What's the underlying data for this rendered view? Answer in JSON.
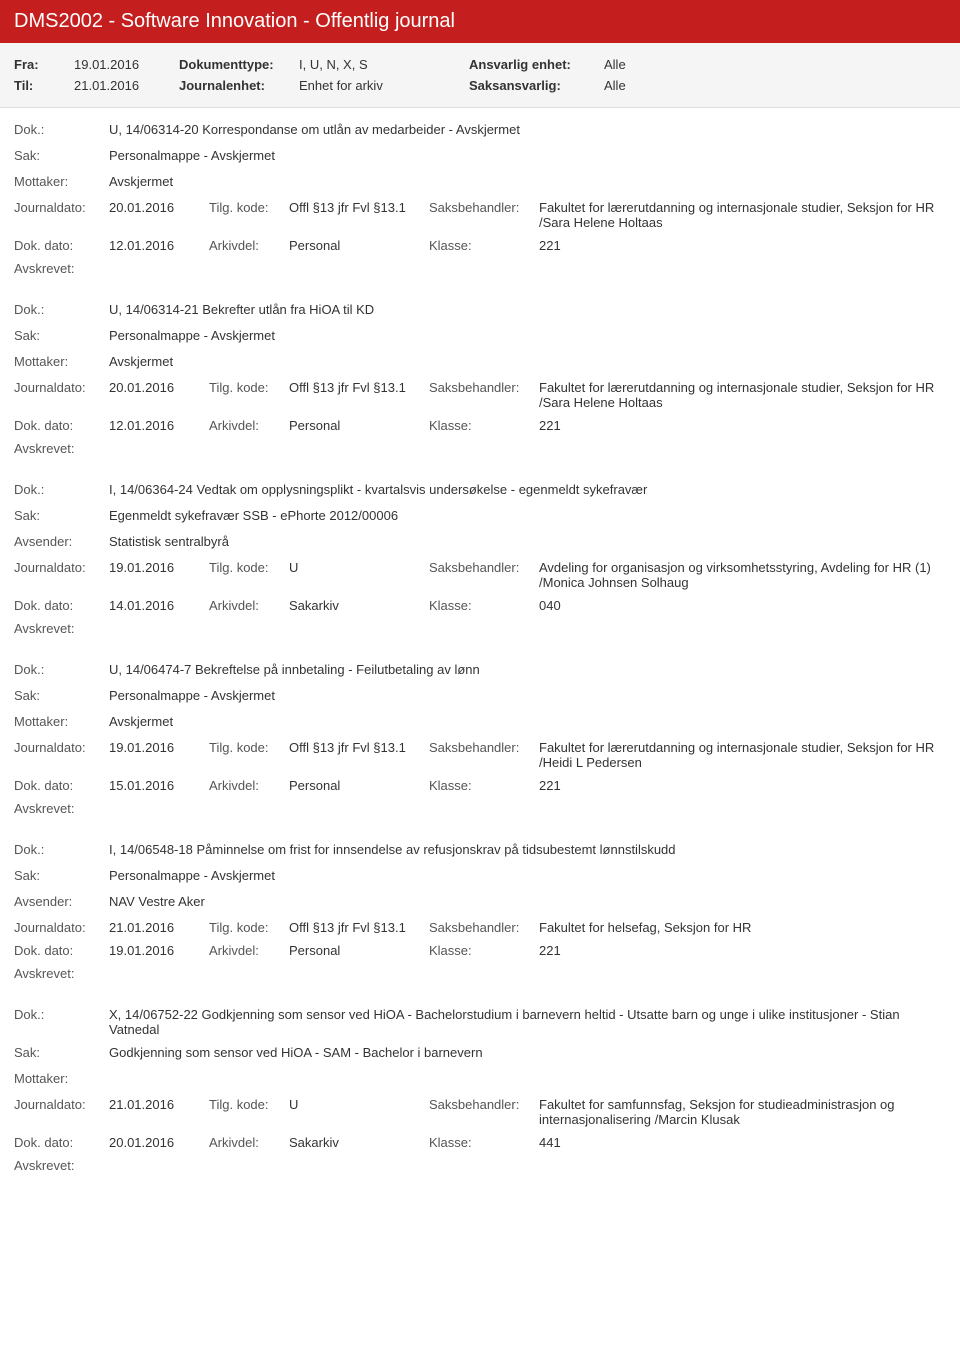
{
  "app_title": "DMS2002 - Software Innovation - Offentlig journal",
  "filter": {
    "fra_label": "Fra:",
    "fra_val": "19.01.2016",
    "til_label": "Til:",
    "til_val": "21.01.2016",
    "doktype_label": "Dokumenttype:",
    "doktype_val": "I, U, N, X, S",
    "jenhet_label": "Journalenhet:",
    "jenhet_val": "Enhet for arkiv",
    "ansvarlig_label": "Ansvarlig enhet:",
    "ansvarlig_val": "Alle",
    "saks_label": "Saksansvarlig:",
    "saks_val": "Alle"
  },
  "labels": {
    "dok": "Dok.:",
    "sak": "Sak:",
    "mottaker": "Mottaker:",
    "avsender": "Avsender:",
    "journaldato": "Journaldato:",
    "tilgkode": "Tilg. kode:",
    "saksbeh": "Saksbehandler:",
    "dokdato": "Dok. dato:",
    "arkivdel": "Arkivdel:",
    "klasse": "Klasse:",
    "avskrevet": "Avskrevet:"
  },
  "entries": [
    {
      "dok": "U, 14/06314-20 Korrespondanse om utlån av medarbeider - Avskjermet",
      "sak": "Personalmappe - Avskjermet",
      "party_label": "Mottaker:",
      "party_val": "Avskjermet",
      "journaldato": "20.01.2016",
      "tilgkode": "Offl §13 jfr Fvl §13.1",
      "saksbeh": "Fakultet for lærerutdanning og internasjonale studier, Seksjon for HR /Sara Helene Holtaas",
      "dokdato": "12.01.2016",
      "arkivdel": "Personal",
      "klasse": "221"
    },
    {
      "dok": "U, 14/06314-21 Bekrefter utlån fra HiOA til KD",
      "sak": "Personalmappe - Avskjermet",
      "party_label": "Mottaker:",
      "party_val": "Avskjermet",
      "journaldato": "20.01.2016",
      "tilgkode": "Offl §13 jfr Fvl §13.1",
      "saksbeh": "Fakultet for lærerutdanning og internasjonale studier, Seksjon for HR /Sara Helene Holtaas",
      "dokdato": "12.01.2016",
      "arkivdel": "Personal",
      "klasse": "221"
    },
    {
      "dok": "I, 14/06364-24 Vedtak om opplysningsplikt - kvartalsvis undersøkelse - egenmeldt sykefravær",
      "sak": "Egenmeldt sykefravær SSB - ePhorte 2012/00006",
      "party_label": "Avsender:",
      "party_val": "Statistisk sentralbyrå",
      "journaldato": "19.01.2016",
      "tilgkode": "U",
      "saksbeh": "Avdeling for organisasjon og virksomhetsstyring, Avdeling for HR (1) /Monica Johnsen Solhaug",
      "dokdato": "14.01.2016",
      "arkivdel": "Sakarkiv",
      "klasse": "040"
    },
    {
      "dok": "U, 14/06474-7 Bekreftelse på innbetaling - Feilutbetaling av lønn",
      "sak": "Personalmappe - Avskjermet",
      "party_label": "Mottaker:",
      "party_val": "Avskjermet",
      "journaldato": "19.01.2016",
      "tilgkode": "Offl §13 jfr Fvl §13.1",
      "saksbeh": "Fakultet for lærerutdanning og internasjonale studier, Seksjon for HR /Heidi L Pedersen",
      "dokdato": "15.01.2016",
      "arkivdel": "Personal",
      "klasse": "221"
    },
    {
      "dok": "I, 14/06548-18 Påminnelse om frist for innsendelse av refusjonskrav på tidsubestemt lønnstilskudd",
      "sak": "Personalmappe - Avskjermet",
      "party_label": "Avsender:",
      "party_val": "NAV Vestre Aker",
      "journaldato": "21.01.2016",
      "tilgkode": "Offl §13 jfr Fvl §13.1",
      "saksbeh": "Fakultet for helsefag, Seksjon for HR",
      "dokdato": "19.01.2016",
      "arkivdel": "Personal",
      "klasse": "221"
    },
    {
      "dok": "X, 14/06752-22 Godkjenning som sensor ved HiOA - Bachelorstudium i barnevern heltid - Utsatte barn og unge i ulike institusjoner - Stian Vatnedal",
      "sak": "Godkjenning som sensor ved HiOA - SAM - Bachelor i barnevern",
      "party_label": "Mottaker:",
      "party_val": "",
      "journaldato": "21.01.2016",
      "tilgkode": "U",
      "saksbeh": "Fakultet for samfunnsfag, Seksjon for studieadministrasjon og internasjonalisering /Marcin Klusak",
      "dokdato": "20.01.2016",
      "arkivdel": "Sakarkiv",
      "klasse": "441"
    }
  ]
}
